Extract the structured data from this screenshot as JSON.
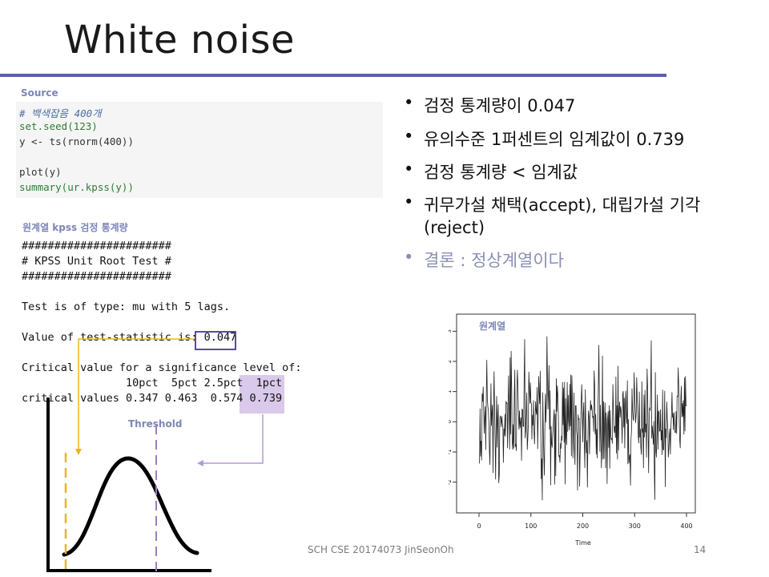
{
  "title": "White noise",
  "source_label": "Source",
  "code_lines": [
    "# 백색잡음 400개",
    "set.seed(123)",
    "y <- ts(rnorm(400))",
    "",
    "plot(y)",
    "summary(ur.kpss(y))"
  ],
  "output_label": "원계열 kpss 검정 통계량",
  "output_lines": [
    "#######################",
    "# KPSS Unit Root Test #",
    "#######################",
    "",
    "Test is of type: mu with 5 lags.",
    "",
    "Value of test-statistic is: 0.047",
    "",
    "Critical value for a significance level of:",
    "                10pct  5pct 2.5pct  1pct",
    "critical values 0.347 0.463  0.574 0.739"
  ],
  "threshold_label": "Threshold",
  "bullets": [
    {
      "line1": "검정 통계량이 0.047",
      "line2": ""
    },
    {
      "line1": "유의수준 1퍼센트의 임계값이 0.739",
      "line2": ""
    },
    {
      "line1": "검정 통계량 < 임계값",
      "line2": ""
    },
    {
      "line1": "귀무가설 채택(accept), 대립가설 기각",
      "line2": "(reject)"
    },
    {
      "line1": "결론 : 정상계열이다",
      "line2": ""
    }
  ],
  "plot_label": "원계열",
  "footer": "SCH CSE 20174073 JinSeonOh",
  "page_number": "14",
  "colors": {
    "accent": "#5b5fa8",
    "label": "#7c86b8",
    "highlight": "#d9c9ea",
    "yellow": "#e8b820",
    "purple": "#9b7cc4"
  },
  "chart_data": {
    "type": "line",
    "title": "",
    "xlabel": "Time",
    "ylabel": "",
    "xlim": [
      0,
      400
    ],
    "ylim": [
      -2.7,
      3.3
    ],
    "xticks": [
      "0",
      "100",
      "200",
      "300",
      "400"
    ],
    "yticks": [
      "-2",
      "-1",
      "0",
      "1",
      "2",
      "3"
    ],
    "seed": 123,
    "n": 400
  }
}
